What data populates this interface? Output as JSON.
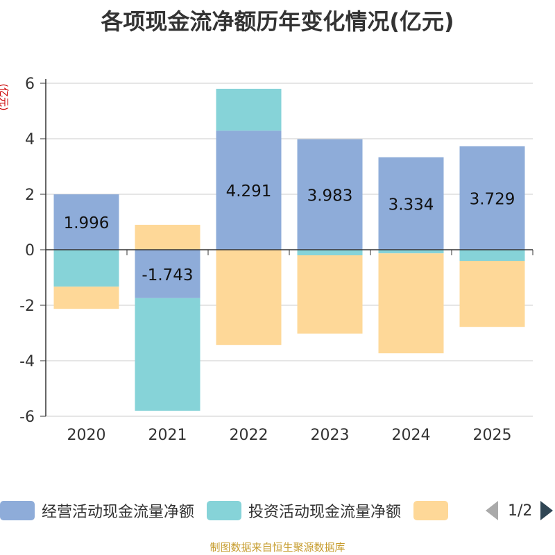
{
  "title": "各项现金流净额历年变化情况(亿元)",
  "footer": "制图数据来自恒生聚源数据库",
  "pager": "1/2",
  "colors": {
    "operating": "#8eacd9",
    "investing": "#86d3d8",
    "financing": "#fed898",
    "axis": "#333333",
    "grid": "#cccccc",
    "unit": "#cc0000"
  },
  "legend": [
    {
      "label": "经营活动现金流量净额",
      "color": "#8eacd9"
    },
    {
      "label": "投资活动现金流量净额",
      "color": "#86d3d8"
    },
    {
      "label": "",
      "color": "#fed898"
    }
  ],
  "chart_data": {
    "type": "bar",
    "stacked": true,
    "title": "各项现金流净额历年变化情况(亿元)",
    "ylabel": "(亿元)",
    "ylim": [
      -6,
      6
    ],
    "yticks": [
      -6,
      -4,
      -2,
      0,
      2,
      4,
      6
    ],
    "ytick_labels": [
      "-6",
      "-4",
      "-2",
      "0",
      "2",
      "4",
      "6"
    ],
    "categories": [
      "2020",
      "2021",
      "2022",
      "2023",
      "2024",
      "2025"
    ],
    "series": [
      {
        "name": "经营活动现金流量净额",
        "values": [
          1.996,
          -1.743,
          4.291,
          3.983,
          3.334,
          3.729
        ],
        "labels": [
          "1.996",
          "-1.743",
          "4.291",
          "3.983",
          "3.334",
          "3.729"
        ]
      },
      {
        "name": "投资活动现金流量净额",
        "values": [
          -1.33,
          -4.06,
          1.51,
          -0.2,
          -0.13,
          -0.4
        ]
      },
      {
        "name": "",
        "values": [
          -0.8,
          0.9,
          -3.43,
          -2.82,
          -3.6,
          -2.38
        ]
      }
    ]
  }
}
